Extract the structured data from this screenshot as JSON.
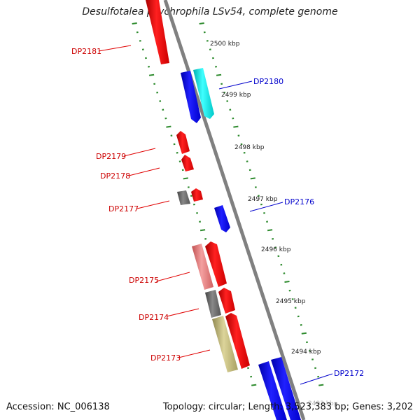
{
  "title": "Desulfotalea psychrophila LSv54, complete genome",
  "footer": {
    "accession": "Accession: NC_006138",
    "summary": "Topology: circular; Length: 3,523,383 bp; Genes: 3,202"
  },
  "scale": [
    "2500 kbp",
    "2499 kbp",
    "2498 kbp",
    "2497 kbp",
    "2496 kbp",
    "2495 kbp",
    "2494 kbp",
    "2493 kbp"
  ],
  "genes": {
    "dp2181": "DP2181",
    "dp2180": "DP2180",
    "dp2179": "DP2179",
    "dp2178": "DP2178",
    "dp2177": "DP2177",
    "dp2176": "DP2176",
    "dp2175": "DP2175",
    "dp2174": "DP2174",
    "dp2173": "DP2173",
    "dp2172": "DP2172"
  },
  "colors": {
    "forward_strand": "#ff0000",
    "reverse_strand": "#0000ff",
    "light_red": "#f08080",
    "cyan": "#00ffff",
    "gray": "#666666",
    "olive": "#c8c080",
    "ticks": "#2e8b2e"
  }
}
